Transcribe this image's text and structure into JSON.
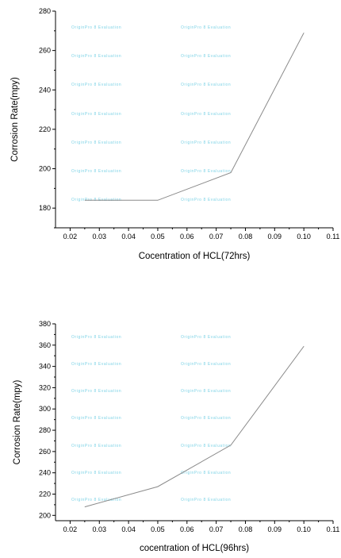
{
  "watermark_text": "OriginPro 8 Evaluation",
  "chart_data": [
    {
      "type": "line",
      "xlabel": "Cocentration of HCL(72hrs)",
      "ylabel": "Corrosion Rate(mpy)",
      "xlim": [
        0.015,
        0.11
      ],
      "ylim": [
        170,
        280
      ],
      "x_ticks": [
        "0.02",
        "0.03",
        "0.04",
        "0.05",
        "0.06",
        "0.07",
        "0.08",
        "0.09",
        "0.10",
        "0.11"
      ],
      "y_ticks": [
        "180",
        "200",
        "220",
        "240",
        "260",
        "280"
      ],
      "series": [
        {
          "x": [
            0.025,
            0.05,
            0.075,
            0.1
          ],
          "y": [
            184,
            184,
            198,
            269
          ]
        }
      ]
    },
    {
      "type": "line",
      "xlabel": "cocentration of HCL(96hrs)",
      "ylabel": "Corrosion Rate(mpy)",
      "xlim": [
        0.015,
        0.11
      ],
      "ylim": [
        195,
        380
      ],
      "x_ticks": [
        "0.02",
        "0.03",
        "0.04",
        "0.05",
        "0.06",
        "0.07",
        "0.08",
        "0.09",
        "0.10",
        "0.11"
      ],
      "y_ticks": [
        "200",
        "220",
        "240",
        "260",
        "280",
        "300",
        "320",
        "340",
        "360",
        "380"
      ],
      "series": [
        {
          "x": [
            0.025,
            0.05,
            0.075,
            0.1
          ],
          "y": [
            208,
            227,
            266,
            359
          ]
        }
      ]
    }
  ]
}
